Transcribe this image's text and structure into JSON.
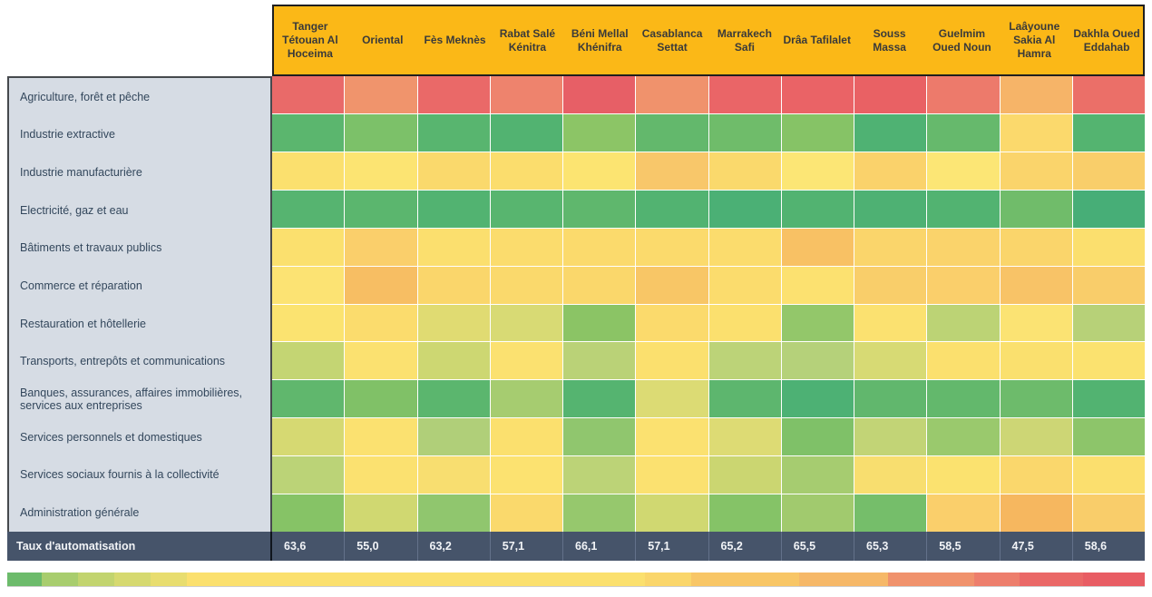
{
  "chart_data": {
    "type": "heatmap",
    "columns": [
      "Tanger Tétouan Al Hoceima",
      "Oriental",
      "Fès Meknès",
      "Rabat Salé Kénitra",
      "Béni Mellal Khénifra",
      "Casablanca Settat",
      "Marrakech Safi",
      "Drâa Tafilalet",
      "Souss Massa",
      "Guelmim Oued Noun",
      "Laâyoune Sakia Al Hamra",
      "Dakhla Oued Eddahab"
    ],
    "rows": [
      "Agriculture, forêt et pêche",
      "Industrie extractive",
      "Industrie manufacturière",
      "Electricité, gaz et eau",
      "Bâtiments et travaux publics",
      "Commerce et réparation",
      "Restauration et hôtellerie",
      "Transports, entrepôts et communications",
      "Banques, assurances, affaires immobilières, services aux entreprises",
      "Services personnels et domestiques",
      "Services sociaux fournis à la collectivité",
      "Administration générale"
    ],
    "cell_colors": [
      [
        "#E96A69",
        "#F0946C",
        "#EA6968",
        "#EE836D",
        "#E75F66",
        "#F0926C",
        "#EA6567",
        "#EA6366",
        "#E96164",
        "#ED7A6B",
        "#F6B468",
        "#EB6F68"
      ],
      [
        "#5BB66E",
        "#7CC169",
        "#58B56F",
        "#52B371",
        "#8CC566",
        "#63B86C",
        "#6FBC6A",
        "#86C366",
        "#4FB273",
        "#66B96C",
        "#FBD96C",
        "#54B470"
      ],
      [
        "#FBE06E",
        "#FCE472",
        "#FAD96C",
        "#FBDD6D",
        "#FCE471",
        "#F8C76A",
        "#FAD96C",
        "#FCE675",
        "#FAD26B",
        "#FCE675",
        "#FAD46B",
        "#F9CE6A"
      ],
      [
        "#56B470",
        "#5BB66E",
        "#52B371",
        "#58B56F",
        "#5FB76D",
        "#52B371",
        "#4BB075",
        "#52B371",
        "#4EB173",
        "#52B371",
        "#70BC6A",
        "#47AE77"
      ],
      [
        "#FBE06E",
        "#FACF6B",
        "#FBDF6E",
        "#FBDC6D",
        "#FBDA6C",
        "#FBDA6C",
        "#FBDC6D",
        "#F8C164",
        "#FAD56B",
        "#FAD36B",
        "#FAD56B",
        "#FBDF6E"
      ],
      [
        "#FCE373",
        "#F7BE63",
        "#FAD66B",
        "#FAD96C",
        "#FAD76B",
        "#F8C666",
        "#FBDC6D",
        "#FCE170",
        "#F9CE6A",
        "#FACF6B",
        "#F8C367",
        "#F9CD6A"
      ],
      [
        "#FBE370",
        "#FBDC6D",
        "#E0DB72",
        "#D8DA74",
        "#8BC465",
        "#FBDA6C",
        "#FBE06E",
        "#93C76A",
        "#FBE170",
        "#BCD375",
        "#FBE373",
        "#B7D178"
      ],
      [
        "#C4D573",
        "#FBE170",
        "#CDD772",
        "#FBE170",
        "#BAD277",
        "#FBE06E",
        "#BCD378",
        "#B5D17A",
        "#D7DA74",
        "#FBE06E",
        "#FAE06E",
        "#FBE26F"
      ],
      [
        "#60B76D",
        "#80C167",
        "#5BB66E",
        "#A6CC70",
        "#55B470",
        "#DCDB74",
        "#5DB66E",
        "#4DB174",
        "#61B76D",
        "#63B86C",
        "#6DBB6B",
        "#52B371"
      ],
      [
        "#D6D972",
        "#FBE170",
        "#B0CF79",
        "#FBE06E",
        "#90C66E",
        "#FBE170",
        "#DDDB74",
        "#7FC168",
        "#C2D476",
        "#9AC96D",
        "#CDD675",
        "#8DC56A"
      ],
      [
        "#BBD377",
        "#FBE170",
        "#F8DE70",
        "#FCE270",
        "#BCD377",
        "#FBE170",
        "#CBD671",
        "#A6CC70",
        "#F8DE6F",
        "#FBE26F",
        "#FAD76C",
        "#FBDF6E"
      ],
      [
        "#86C366",
        "#D0D871",
        "#90C66E",
        "#FAD96C",
        "#96C86D",
        "#D0D871",
        "#85C367",
        "#A1CA6E",
        "#75BE6A",
        "#FACF6B",
        "#F6B75F",
        "#F9CD6A"
      ]
    ],
    "footer_series": {
      "label": "Taux d'automatisation",
      "values": [
        63.6,
        55.0,
        63.2,
        57.1,
        66.1,
        57.1,
        65.2,
        65.5,
        65.3,
        58.5,
        47.5,
        58.6
      ],
      "display": [
        "63,6",
        "55,0",
        "63,2",
        "57,1",
        "66,1",
        "57,1",
        "65,2",
        "65,5",
        "65,3",
        "58,5",
        "47,5",
        "58,6"
      ]
    },
    "color_scale": {
      "low_color": "#52B371",
      "mid_color": "#FBE06E",
      "high_color": "#E85D64"
    },
    "legend_position": "bottom"
  },
  "legend": {
    "segments": [
      {
        "color": "#6CBB6B",
        "width_pct": 3.0
      },
      {
        "color": "#A8CD6E",
        "width_pct": 3.2
      },
      {
        "color": "#C2D46F",
        "width_pct": 3.2
      },
      {
        "color": "#D6D970",
        "width_pct": 3.2
      },
      {
        "color": "#E8DD6F",
        "width_pct": 3.2
      },
      {
        "color": "#FBE06E",
        "width_pct": 40.3
      },
      {
        "color": "#FAD66B",
        "width_pct": 4.0
      },
      {
        "color": "#F8C666",
        "width_pct": 9.5
      },
      {
        "color": "#F6B868",
        "width_pct": 7.8
      },
      {
        "color": "#F0926C",
        "width_pct": 7.6
      },
      {
        "color": "#ED7E6C",
        "width_pct": 4.0
      },
      {
        "color": "#EA6867",
        "width_pct": 5.6
      },
      {
        "color": "#E85D64",
        "width_pct": 5.4
      }
    ]
  },
  "style": {
    "header_bg": "#FBB817",
    "header_text": "#3A3A3A",
    "label_bg": "#D6DCE4",
    "label_text": "#33475C",
    "footer_bg": "#46546A",
    "footer_text": "#F2F4F7"
  }
}
